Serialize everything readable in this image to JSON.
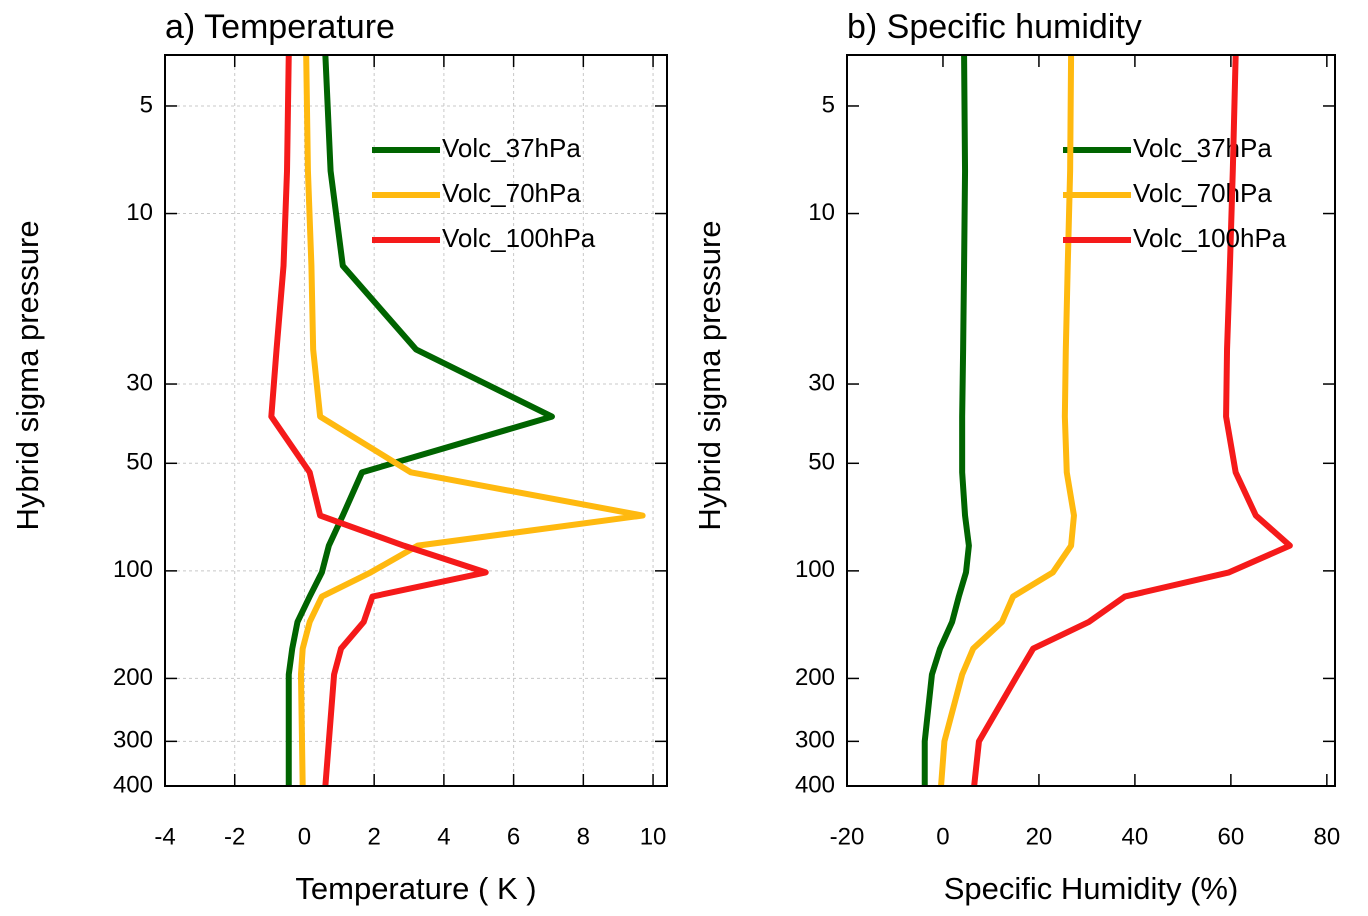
{
  "chart_data": [
    {
      "type": "line",
      "title": "a) Temperature",
      "x_label": "Temperature ( K )",
      "y_label": "Hybrid sigma pressure",
      "y": [
        3.6,
        7.6,
        14,
        24,
        37,
        53,
        70,
        85,
        101,
        118,
        139,
        165,
        195,
        400
      ],
      "series": [
        {
          "name": "Volc_37hPa",
          "color": "#006400",
          "values": [
            0.6,
            0.75,
            1.1,
            3.2,
            7.1,
            1.65,
            1.1,
            0.7,
            0.5,
            0.15,
            -0.2,
            -0.35,
            -0.45,
            -0.45
          ]
        },
        {
          "name": "Volc_70hPa",
          "color": "#ffb90f",
          "values": [
            0.05,
            0.1,
            0.2,
            0.25,
            0.45,
            3.05,
            9.7,
            3.25,
            1.9,
            0.5,
            0.15,
            -0.05,
            -0.1,
            -0.05
          ]
        },
        {
          "name": "Volc_100hPa",
          "color": "#f51a1a",
          "values": [
            -0.45,
            -0.5,
            -0.6,
            -0.8,
            -0.95,
            0.15,
            0.45,
            2.85,
            5.2,
            1.95,
            1.7,
            1.05,
            0.85,
            0.6
          ]
        }
      ],
      "xlim": [
        -4,
        10.4
      ],
      "xticks": [
        -4,
        -2,
        0,
        2,
        4,
        6,
        8,
        10
      ],
      "ylim": [
        400,
        3.6
      ],
      "yticks": [
        5,
        10,
        30,
        50,
        100,
        200,
        300,
        400
      ],
      "y_log": true,
      "grid": true,
      "legend": "upper right"
    },
    {
      "type": "line",
      "title": "b) Specific humidity",
      "x_label": "Specific Humidity (%)",
      "y_label": "Hybrid sigma pressure",
      "y": [
        3.6,
        7.6,
        14,
        24,
        37,
        53,
        70,
        85,
        101,
        118,
        139,
        165,
        195,
        300,
        400
      ],
      "series": [
        {
          "name": "Volc_37hPa",
          "color": "#006400",
          "values": [
            4.4,
            4.6,
            4.4,
            4.2,
            4.0,
            4.0,
            4.6,
            5.4,
            4.8,
            3.3,
            1.9,
            -0.6,
            -2.3,
            -3.8,
            -3.8
          ]
        },
        {
          "name": "Volc_70hPa",
          "color": "#ffb90f",
          "values": [
            26.7,
            26.5,
            26,
            25.6,
            25.4,
            25.8,
            27.3,
            26.7,
            22.9,
            14.6,
            12.3,
            6.3,
            4.0,
            0.3,
            -0.4
          ]
        },
        {
          "name": "Volc_100hPa",
          "color": "#f51a1a",
          "values": [
            61,
            60.4,
            59.8,
            59.2,
            59,
            61,
            65.2,
            72.3,
            59.6,
            37.9,
            30.4,
            18.8,
            15.6,
            7.5,
            6.5
          ]
        }
      ],
      "xlim": [
        -20,
        81.7
      ],
      "xticks": [
        -20,
        0,
        20,
        40,
        60,
        80
      ],
      "ylim": [
        400,
        3.6
      ],
      "yticks": [
        5,
        10,
        30,
        50,
        100,
        200,
        300,
        400
      ],
      "y_log": true,
      "grid": false,
      "legend": "upper right"
    }
  ]
}
